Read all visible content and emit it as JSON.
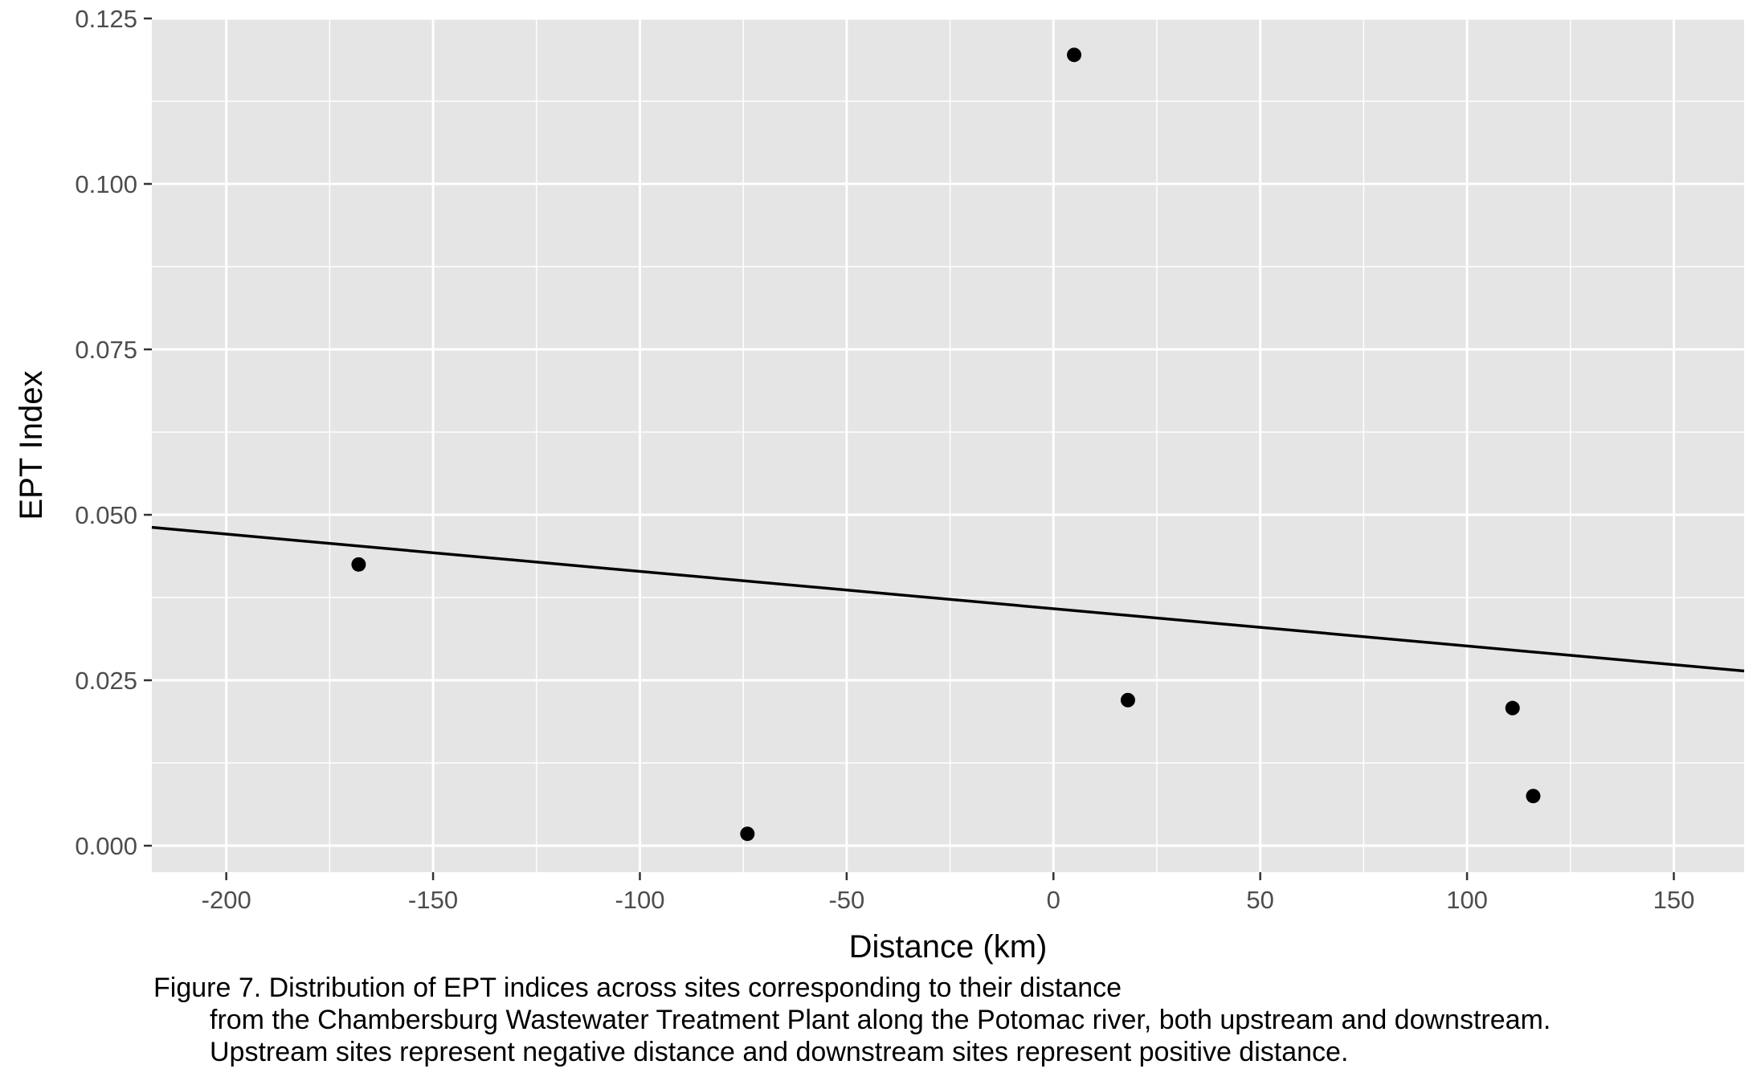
{
  "chart_data": {
    "type": "scatter",
    "title": "",
    "xlabel": "Distance (km)",
    "ylabel": "EPT Index",
    "xlim": [
      -218,
      167
    ],
    "ylim": [
      -0.004,
      0.125
    ],
    "x_ticks": [
      -200,
      -150,
      -100,
      -50,
      0,
      50,
      100,
      150
    ],
    "x_tick_labels": [
      "-200",
      "-150",
      "-100",
      "-50",
      "0",
      "50",
      "100",
      "150"
    ],
    "y_ticks": [
      0.0,
      0.025,
      0.05,
      0.075,
      0.1,
      0.125
    ],
    "y_tick_labels": [
      "0.000",
      "0.025",
      "0.050",
      "0.075",
      "0.100",
      "0.125"
    ],
    "grid": true,
    "legend": "none",
    "points": [
      {
        "x": -168,
        "y": 0.0425
      },
      {
        "x": -74,
        "y": 0.0018
      },
      {
        "x": 5,
        "y": 0.1195
      },
      {
        "x": 18,
        "y": 0.022
      },
      {
        "x": 111,
        "y": 0.0208
      },
      {
        "x": 116,
        "y": 0.0075
      }
    ],
    "trend_line": {
      "x": [
        -218,
        167
      ],
      "y": [
        0.0481,
        0.0264
      ]
    },
    "colors": {
      "panel_background": "#e5e5e5",
      "grid": "#ffffff",
      "points": "#000000",
      "line": "#000000",
      "tick_labels": "#4d4d4d",
      "axis_titles": "#000000"
    }
  },
  "caption": {
    "line1": "Figure 7. Distribution of EPT indices across sites corresponding to their distance",
    "line2": "from the Chambersburg Wastewater Treatment Plant along the Potomac river, both upstream and downstream.",
    "line3": "Upstream sites represent negative distance and downstream sites represent positive distance."
  }
}
